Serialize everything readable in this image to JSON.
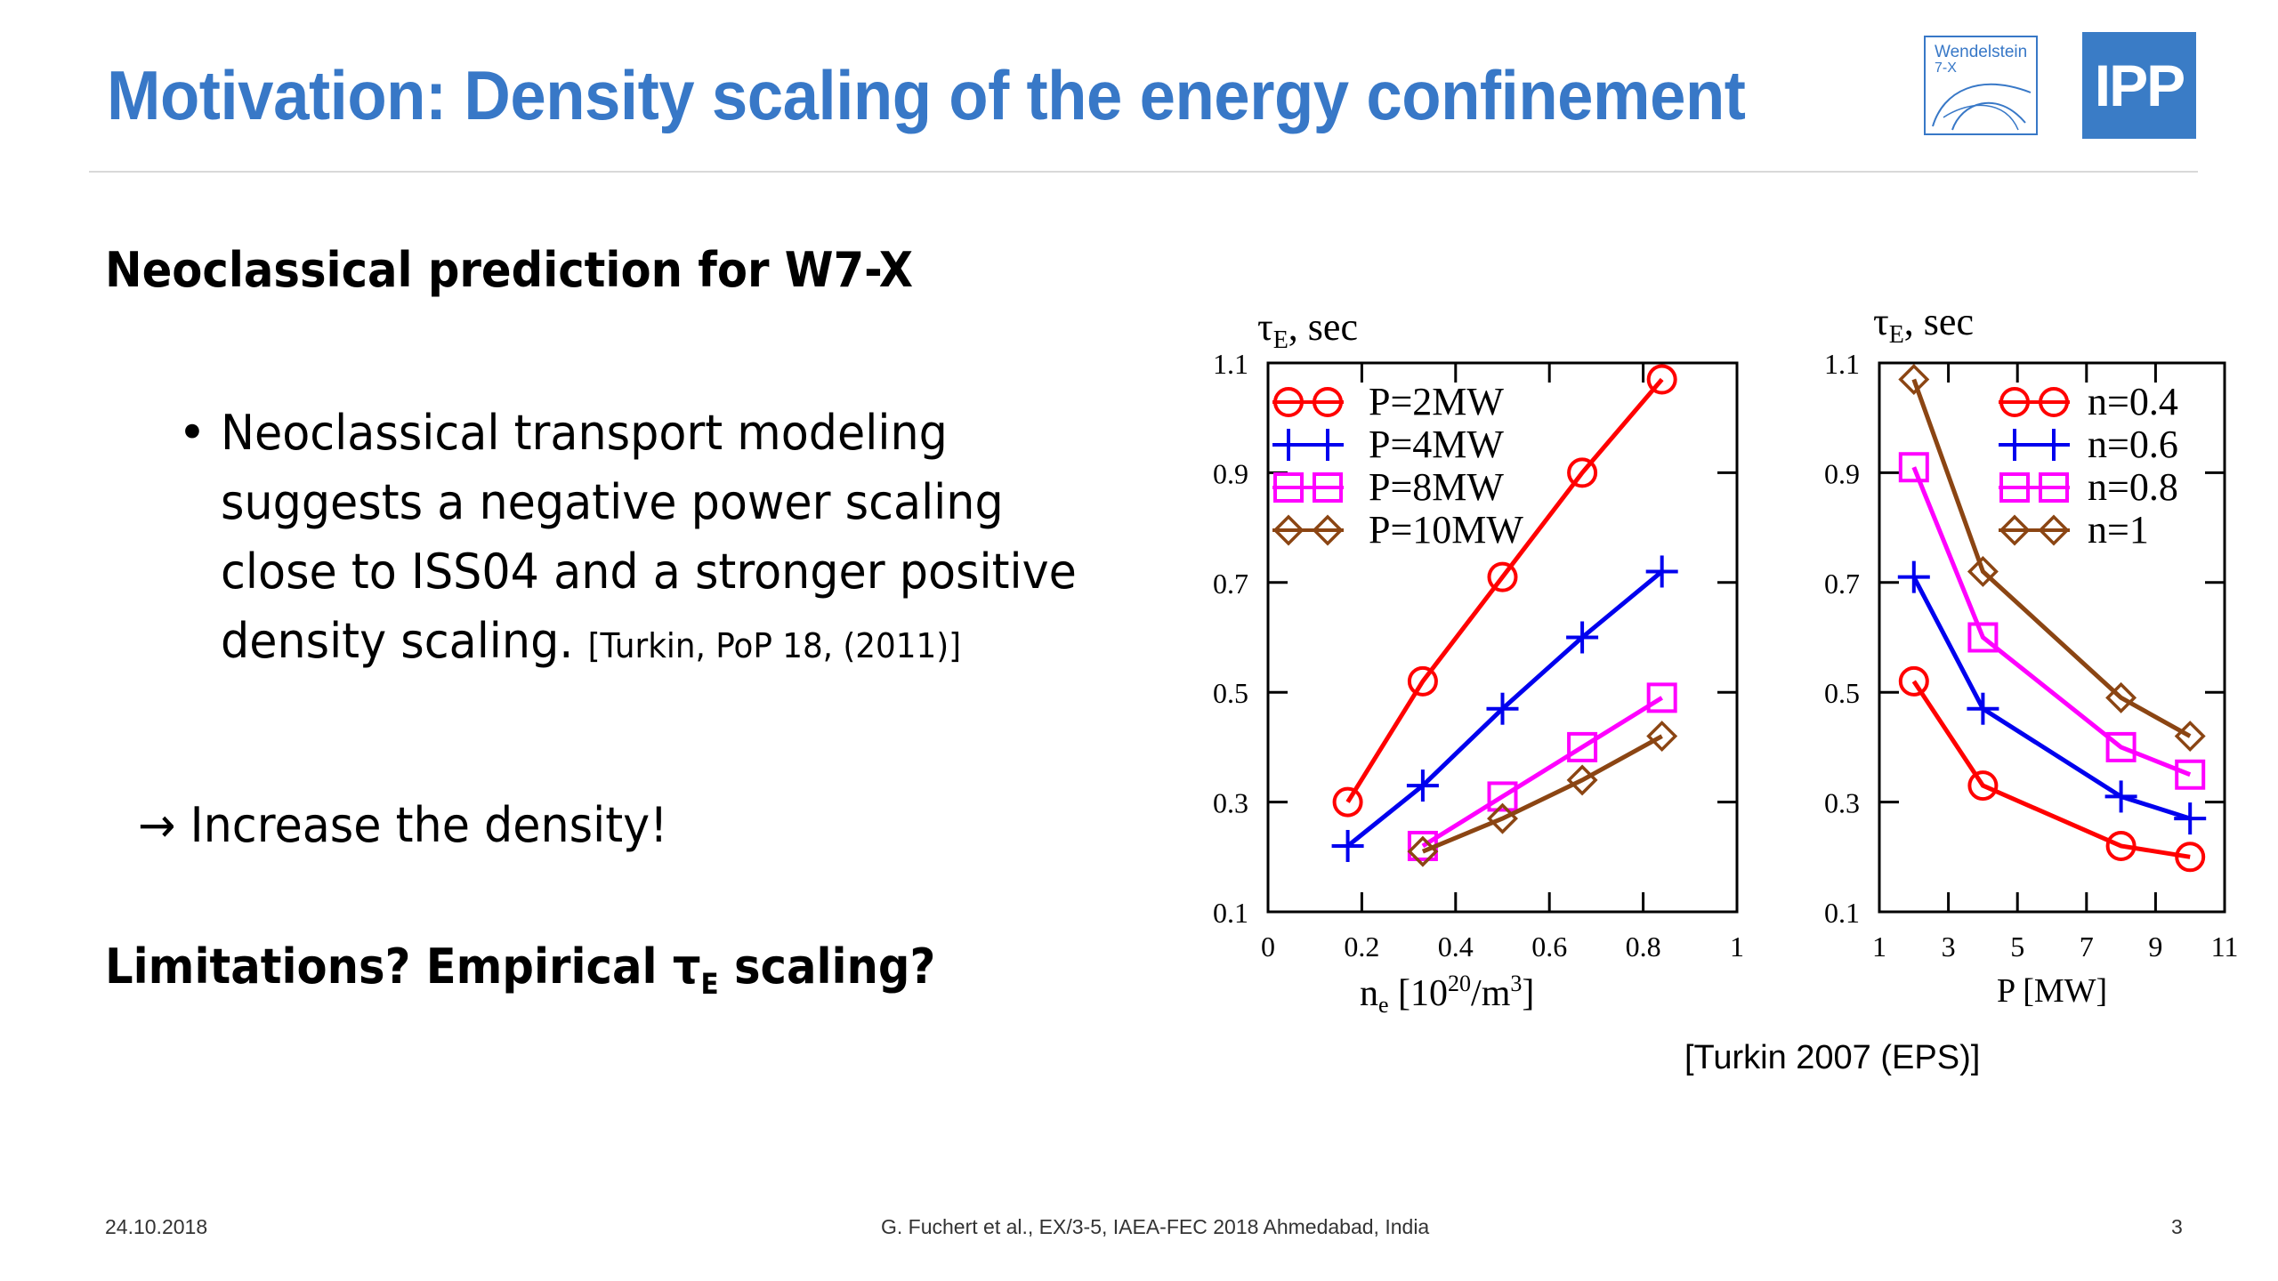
{
  "slide": {
    "title": "Motivation: Density scaling of the energy confinement",
    "heading": "Neoclassical prediction for W7-X",
    "bullet_text": "Neoclassical transport modeling suggests a negative power scaling close to ISS04 and a stronger positive density scaling.",
    "bullet_cite": "[Turkin, PoP 18, (2011)]",
    "arrow_text": "→ Increase the density!",
    "limits_prefix": "Limitations? Empirical τ",
    "limits_sub": "E",
    "limits_suffix": " scaling?",
    "chart_citation": "[Turkin 2007 (EPS)]",
    "footer_date": "24.10.2018",
    "footer_center": "G. Fuchert et al., EX/3-5, IAEA-FEC 2018 Ahmedabad, India",
    "page_number": "3"
  },
  "logos": {
    "w7x_line1": "Wendelstein",
    "w7x_line2": "7-X",
    "ipp": "IPP"
  },
  "colors": {
    "title_blue": "#3878c7",
    "red": "#ff0000",
    "blue": "#0000ee",
    "magenta": "#ff00ff",
    "brown": "#8b4513"
  },
  "chart_data": [
    {
      "type": "line",
      "ylabel_main": "τ",
      "ylabel_sub": "E",
      "ylabel_rest": ", sec",
      "xlabel_main": "n",
      "xlabel_sub": "e",
      "xlabel_rest1": " [10",
      "xlabel_sup1": "20",
      "xlabel_rest2": "/m",
      "xlabel_sup2": "3",
      "xlabel_rest3": "]",
      "xlim": [
        0,
        1
      ],
      "ylim": [
        0.1,
        1.1
      ],
      "xticks": [
        "0",
        "0.2",
        "0.4",
        "0.6",
        "0.8",
        "1"
      ],
      "yticks": [
        "0.1",
        "0.3",
        "0.5",
        "0.7",
        "0.9",
        "1.1"
      ],
      "legend_position": "top-left",
      "series": [
        {
          "name": "P=2MW",
          "marker": "circle",
          "color": "#ff0000",
          "x": [
            0.17,
            0.33,
            0.5,
            0.67,
            0.84
          ],
          "y": [
            0.3,
            0.52,
            0.71,
            0.9,
            1.07
          ]
        },
        {
          "name": "P=4MW",
          "marker": "plus",
          "color": "#0000ee",
          "x": [
            0.17,
            0.33,
            0.5,
            0.67,
            0.84
          ],
          "y": [
            0.22,
            0.33,
            0.47,
            0.6,
            0.72
          ]
        },
        {
          "name": "P=8MW",
          "marker": "square",
          "color": "#ff00ff",
          "x": [
            0.33,
            0.5,
            0.67,
            0.84
          ],
          "y": [
            0.22,
            0.31,
            0.4,
            0.49
          ]
        },
        {
          "name": "P=10MW",
          "marker": "diamond",
          "color": "#8b4513",
          "x": [
            0.33,
            0.5,
            0.67,
            0.84
          ],
          "y": [
            0.21,
            0.27,
            0.34,
            0.42
          ]
        }
      ]
    },
    {
      "type": "line",
      "ylabel_main": "τ",
      "ylabel_sub": "E",
      "ylabel_rest": ", sec",
      "xlabel_main": "P [MW]",
      "xlim": [
        1,
        11
      ],
      "ylim": [
        0.1,
        1.1
      ],
      "xticks": [
        "1",
        "3",
        "5",
        "7",
        "9",
        "11"
      ],
      "yticks": [
        "0.1",
        "0.3",
        "0.5",
        "0.7",
        "0.9",
        "1.1"
      ],
      "legend_position": "top-right",
      "series": [
        {
          "name": "n=0.4",
          "marker": "circle",
          "color": "#ff0000",
          "x": [
            2,
            4,
            8,
            10
          ],
          "y": [
            0.52,
            0.33,
            0.22,
            0.2
          ]
        },
        {
          "name": "n=0.6",
          "marker": "plus",
          "color": "#0000ee",
          "x": [
            2,
            4,
            8,
            10
          ],
          "y": [
            0.71,
            0.47,
            0.31,
            0.27
          ]
        },
        {
          "name": "n=0.8",
          "marker": "square",
          "color": "#ff00ff",
          "x": [
            2,
            4,
            8,
            10
          ],
          "y": [
            0.91,
            0.6,
            0.4,
            0.35
          ]
        },
        {
          "name": "n=1",
          "marker": "diamond",
          "color": "#8b4513",
          "x": [
            2,
            4,
            8,
            10
          ],
          "y": [
            1.07,
            0.72,
            0.49,
            0.42
          ]
        }
      ]
    }
  ]
}
